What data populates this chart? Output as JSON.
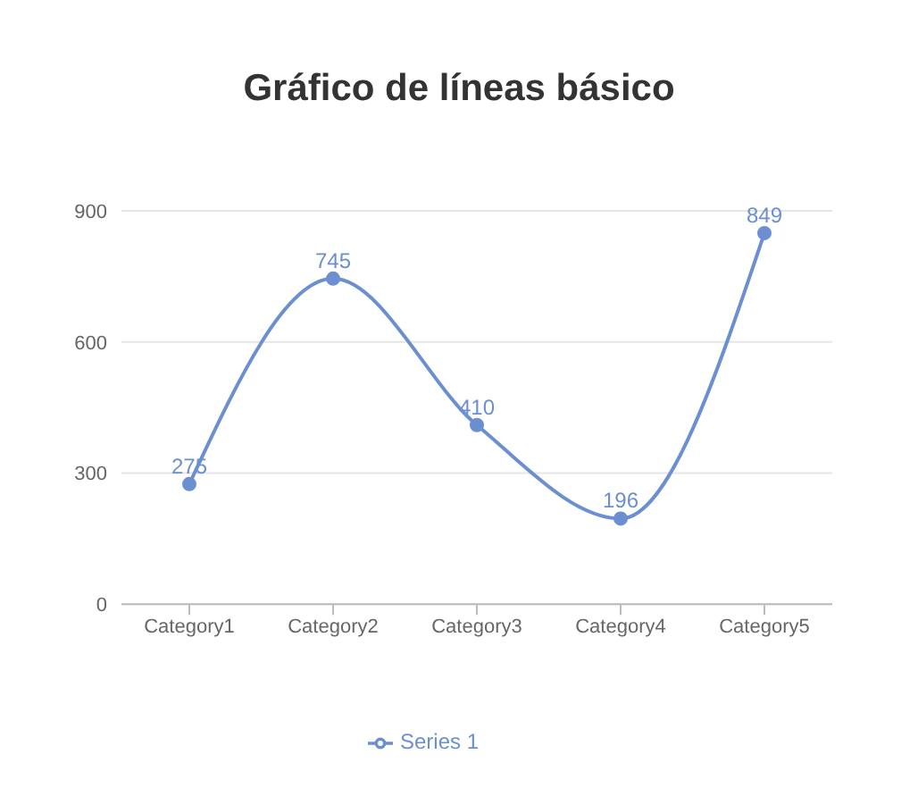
{
  "chart_data": {
    "type": "line",
    "title": "Gráfico de líneas básico",
    "categories": [
      "Category1",
      "Category2",
      "Category3",
      "Category4",
      "Category5"
    ],
    "series": [
      {
        "name": "Series 1",
        "color": "#6b8fd1",
        "values": [
          275,
          745,
          410,
          196,
          849
        ]
      }
    ],
    "ylim": [
      0,
      900
    ],
    "yticks": [
      0,
      300,
      600,
      900
    ],
    "grid": "y",
    "legend": "bottom",
    "marker": "circle",
    "data_labels": true
  }
}
